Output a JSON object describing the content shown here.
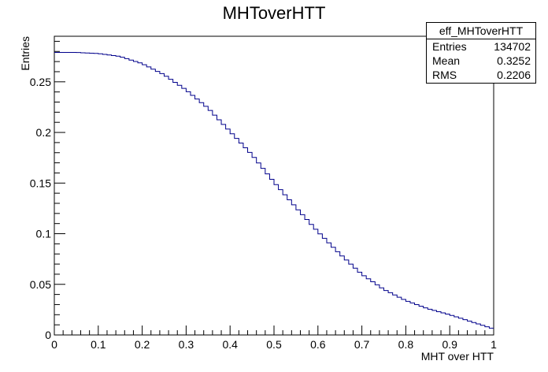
{
  "chart_data": {
    "type": "histogram",
    "title": "MHToverHTT",
    "xlabel": "MHT over HTT",
    "ylabel": "Entries",
    "xlim": [
      0,
      1
    ],
    "ylim": [
      0,
      0.295
    ],
    "x_ticks": [
      "0",
      "0.1",
      "0.2",
      "0.3",
      "0.4",
      "0.5",
      "0.6",
      "0.7",
      "0.8",
      "0.9",
      "1"
    ],
    "y_ticks": [
      "0",
      "0.05",
      "0.1",
      "0.15",
      "0.2",
      "0.25"
    ],
    "grid": false,
    "line_color": "#00008b",
    "bins": 100,
    "x_points": [
      0.0,
      0.05,
      0.1,
      0.15,
      0.2,
      0.25,
      0.3,
      0.35,
      0.4,
      0.45,
      0.5,
      0.55,
      0.6,
      0.65,
      0.7,
      0.75,
      0.8,
      0.85,
      0.9,
      0.95,
      1.0
    ],
    "y_points": [
      0.279,
      0.279,
      0.278,
      0.275,
      0.268,
      0.257,
      0.242,
      0.224,
      0.201,
      0.178,
      0.151,
      0.126,
      0.102,
      0.08,
      0.06,
      0.045,
      0.034,
      0.026,
      0.02,
      0.013,
      0.006
    ],
    "stats": {
      "name": "eff_MHToverHTT",
      "rows": [
        {
          "key": "Entries",
          "value": "134702"
        },
        {
          "key": "Mean",
          "value": "0.3252"
        },
        {
          "key": "RMS",
          "value": "0.2206"
        }
      ]
    }
  }
}
